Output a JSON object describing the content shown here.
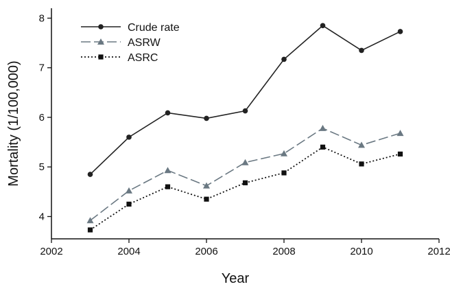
{
  "chart_data": {
    "type": "line",
    "title": "",
    "xlabel": "Year",
    "ylabel": "Mortality (1/100,000)",
    "xlim": [
      2002,
      2012
    ],
    "ylim": [
      3.55,
      8.2
    ],
    "x_ticks": [
      2002,
      2004,
      2006,
      2008,
      2010,
      2012
    ],
    "y_ticks": [
      4,
      5,
      6,
      7,
      8
    ],
    "grid": false,
    "legend_position": "top-left",
    "x": [
      2003,
      2004,
      2005,
      2006,
      2007,
      2008,
      2009,
      2010,
      2011
    ],
    "series": [
      {
        "name": "Crude rate",
        "values": [
          4.85,
          5.6,
          6.09,
          5.98,
          6.13,
          7.17,
          7.85,
          7.35,
          7.73
        ],
        "color": "#222222",
        "dash": "solid",
        "marker": "circle"
      },
      {
        "name": "ASRW",
        "values": [
          3.92,
          4.52,
          4.93,
          4.62,
          5.09,
          5.27,
          5.78,
          5.44,
          5.68
        ],
        "color": "#6a7882",
        "dash": "dashed",
        "marker": "triangle"
      },
      {
        "name": "ASRC",
        "values": [
          3.73,
          4.25,
          4.6,
          4.35,
          4.68,
          4.88,
          5.4,
          5.06,
          5.26
        ],
        "color": "#111111",
        "dash": "dotted",
        "marker": "square"
      }
    ]
  }
}
